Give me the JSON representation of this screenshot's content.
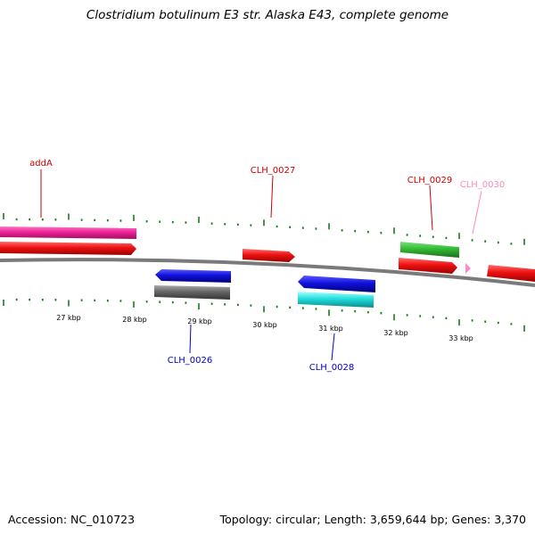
{
  "title": "Clostridium botulinum E3 str. Alaska E43, complete genome",
  "accession_label": "Accession: NC_010723",
  "summary_label": "Topology: circular; Length: 3,659,644 bp; Genes: 3,370",
  "colors": {
    "forward_label": "#cc0000",
    "reverse_label": "#0000cc",
    "ticks": "#1a7a1a",
    "backbone": "#7a7a7a",
    "pink_label": "#ff88bb"
  },
  "scale": {
    "unit": "kbp",
    "labels": [
      "27 kbp",
      "28 kbp",
      "29 kbp",
      "30 kbp",
      "31 kbp",
      "32 kbp",
      "33 kbp"
    ]
  },
  "genes": [
    {
      "name": "addA",
      "strand": "forward",
      "color": "#cc0000"
    },
    {
      "name": "CLH_0027",
      "strand": "forward",
      "color": "#cc0000"
    },
    {
      "name": "CLH_0029",
      "strand": "forward",
      "color": "#cc0000"
    },
    {
      "name": "CLH_0030",
      "strand": "forward",
      "color": "#ff88bb"
    },
    {
      "name": "CLH_0026",
      "strand": "reverse",
      "color": "#0000cc"
    },
    {
      "name": "CLH_0028",
      "strand": "reverse",
      "color": "#0000cc"
    }
  ],
  "feature_colors": {
    "cds_forward": "#ee1111",
    "cds_reverse": "#1111dd",
    "magenta": "#ee2299",
    "green": "#33bb33",
    "gray": "#666666",
    "cyan": "#22dddd",
    "pink": "#ff88cc"
  }
}
